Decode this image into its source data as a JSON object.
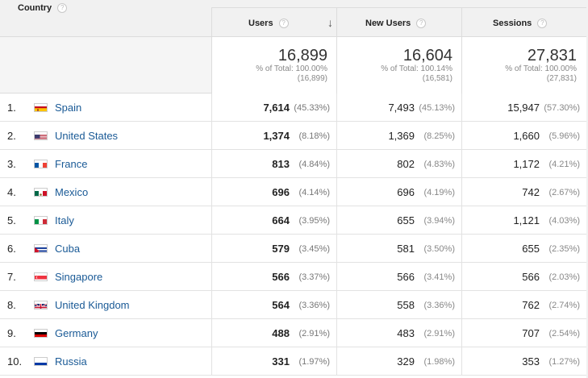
{
  "header": {
    "country": "Country",
    "users": "Users",
    "new_users": "New Users",
    "sessions": "Sessions",
    "help_glyph": "?",
    "sort_glyph": "↓"
  },
  "totals": {
    "users": {
      "value": "16,899",
      "line1": "% of Total: 100.00%",
      "line2": "(16,899)"
    },
    "new_users": {
      "value": "16,604",
      "line1": "% of Total: 100.14%",
      "line2": "(16,581)"
    },
    "sessions": {
      "value": "27,831",
      "line1": "% of Total: 100.00%",
      "line2": "(27,831)"
    }
  },
  "rows": [
    {
      "rank": "1.",
      "flag": "es",
      "country": "Spain",
      "users": "7,614",
      "users_pct": "(45.33%)",
      "new_users": "7,493",
      "new_users_pct": "(45.13%)",
      "sessions": "15,947",
      "sessions_pct": "(57.30%)"
    },
    {
      "rank": "2.",
      "flag": "us",
      "country": "United States",
      "users": "1,374",
      "users_pct": "(8.18%)",
      "new_users": "1,369",
      "new_users_pct": "(8.25%)",
      "sessions": "1,660",
      "sessions_pct": "(5.96%)"
    },
    {
      "rank": "3.",
      "flag": "fr",
      "country": "France",
      "users": "813",
      "users_pct": "(4.84%)",
      "new_users": "802",
      "new_users_pct": "(4.83%)",
      "sessions": "1,172",
      "sessions_pct": "(4.21%)"
    },
    {
      "rank": "4.",
      "flag": "mx",
      "country": "Mexico",
      "users": "696",
      "users_pct": "(4.14%)",
      "new_users": "696",
      "new_users_pct": "(4.19%)",
      "sessions": "742",
      "sessions_pct": "(2.67%)"
    },
    {
      "rank": "5.",
      "flag": "it",
      "country": "Italy",
      "users": "664",
      "users_pct": "(3.95%)",
      "new_users": "655",
      "new_users_pct": "(3.94%)",
      "sessions": "1,121",
      "sessions_pct": "(4.03%)"
    },
    {
      "rank": "6.",
      "flag": "cu",
      "country": "Cuba",
      "users": "579",
      "users_pct": "(3.45%)",
      "new_users": "581",
      "new_users_pct": "(3.50%)",
      "sessions": "655",
      "sessions_pct": "(2.35%)"
    },
    {
      "rank": "7.",
      "flag": "sg",
      "country": "Singapore",
      "users": "566",
      "users_pct": "(3.37%)",
      "new_users": "566",
      "new_users_pct": "(3.41%)",
      "sessions": "566",
      "sessions_pct": "(2.03%)"
    },
    {
      "rank": "8.",
      "flag": "gb",
      "country": "United Kingdom",
      "users": "564",
      "users_pct": "(3.36%)",
      "new_users": "558",
      "new_users_pct": "(3.36%)",
      "sessions": "762",
      "sessions_pct": "(2.74%)"
    },
    {
      "rank": "9.",
      "flag": "de",
      "country": "Germany",
      "users": "488",
      "users_pct": "(2.91%)",
      "new_users": "483",
      "new_users_pct": "(2.91%)",
      "sessions": "707",
      "sessions_pct": "(2.54%)"
    },
    {
      "rank": "10.",
      "flag": "ru",
      "country": "Russia",
      "users": "331",
      "users_pct": "(1.97%)",
      "new_users": "329",
      "new_users_pct": "(1.98%)",
      "sessions": "353",
      "sessions_pct": "(1.27%)"
    }
  ],
  "colors": {
    "link": "#1a5a96",
    "header_bg": "#f1f1f1",
    "border": "#dcdcdc"
  }
}
